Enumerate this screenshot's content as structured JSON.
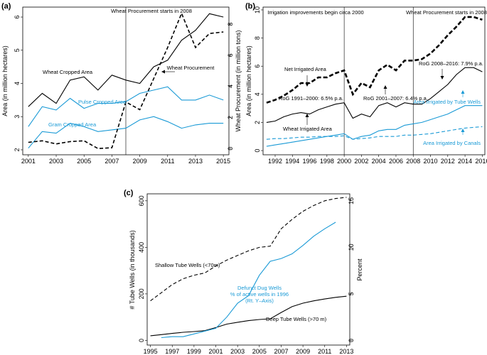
{
  "colors": {
    "black": "#000000",
    "blue": "#1a9ad6"
  },
  "chart_data": [
    {
      "panel": "(a)",
      "type": "line",
      "xlabel": "",
      "ylabel": "Area (in million hectares)",
      "ylabel_right": "Wheat Procurement (in million tons)",
      "xlim": [
        2001,
        2015
      ],
      "ylim": [
        2,
        6
      ],
      "ylim_right": [
        0,
        8.5
      ],
      "xticks": [
        "2001",
        "2003",
        "2005",
        "2007",
        "2009",
        "2011",
        "2013",
        "2015"
      ],
      "yticks": [
        "2",
        "3",
        "4",
        "5",
        "6"
      ],
      "yticks_right": [
        "0",
        "2",
        "4",
        "6",
        "8"
      ],
      "vline": {
        "x": 2008,
        "label": "Wheat Procurement starts in 2008"
      },
      "x": [
        2001,
        2002,
        2003,
        2004,
        2005,
        2006,
        2007,
        2008,
        2009,
        2010,
        2011,
        2012,
        2013,
        2014,
        2015
      ],
      "series": [
        {
          "name": "Wheat Cropped Area",
          "axis": "left",
          "color": "black",
          "dash": "solid",
          "values": [
            3.3,
            3.7,
            3.4,
            4.1,
            4.2,
            3.8,
            4.25,
            4.1,
            4.0,
            4.5,
            4.7,
            5.3,
            5.6,
            6.1,
            6.0
          ]
        },
        {
          "name": "Pulse Cropped Area",
          "axis": "left",
          "color": "blue",
          "dash": "solid",
          "values": [
            2.7,
            3.3,
            3.2,
            3.55,
            3.25,
            3.4,
            3.4,
            3.45,
            3.7,
            3.8,
            3.9,
            3.5,
            3.5,
            3.65,
            3.5
          ]
        },
        {
          "name": "Gram Cropped Area",
          "axis": "left",
          "color": "blue",
          "dash": "solid",
          "values": [
            2.05,
            2.55,
            2.5,
            2.8,
            2.7,
            2.55,
            2.6,
            2.65,
            2.9,
            3.0,
            2.85,
            2.65,
            2.75,
            2.8,
            2.8
          ]
        },
        {
          "name": "Wheat Procurement",
          "axis": "right",
          "color": "black",
          "dash": "dashed",
          "values": [
            0.4,
            0.5,
            0.3,
            0.45,
            0.5,
            0.0,
            0.05,
            3.0,
            2.5,
            4.5,
            6.5,
            8.7,
            6.5,
            7.4,
            7.5
          ]
        }
      ],
      "labels": {
        "wheat_area": "Wheat Cropped Area",
        "pulse_area": "Pulse Cropped Area",
        "gram_area": "Gram Cropped Area",
        "procurement": "Wheat Procurement"
      }
    },
    {
      "panel": "(b)",
      "type": "line",
      "xlabel": "",
      "ylabel": "Area (in million hectares)",
      "xlim": [
        1991,
        2016
      ],
      "ylim": [
        0,
        10
      ],
      "xticks": [
        "1992",
        "1994",
        "1996",
        "1998",
        "2000",
        "2002",
        "2004",
        "2006",
        "2008",
        "2010",
        "2012",
        "2014",
        "2016"
      ],
      "yticks": [
        "0",
        "2",
        "4",
        "6",
        "8",
        "10"
      ],
      "vlines": [
        {
          "x": 2000,
          "label": "Irrigation improvements begin circa 2000"
        },
        {
          "x": 2008,
          "label": "Wheat Procurement starts in 2008"
        }
      ],
      "x": [
        1991,
        1992,
        1993,
        1994,
        1995,
        1996,
        1997,
        1998,
        1999,
        2000,
        2001,
        2002,
        2003,
        2004,
        2005,
        2006,
        2007,
        2008,
        2009,
        2010,
        2011,
        2012,
        2013,
        2014,
        2015,
        2016
      ],
      "series": [
        {
          "name": "Net Irrigated Area",
          "color": "black",
          "dash": "dashed-thick",
          "values": [
            3.4,
            3.6,
            3.9,
            4.3,
            4.8,
            4.8,
            5.2,
            5.2,
            5.5,
            5.7,
            4.0,
            4.8,
            4.5,
            5.7,
            6.1,
            5.7,
            6.4,
            6.4,
            6.5,
            6.9,
            7.5,
            8.2,
            8.8,
            9.5,
            9.5,
            9.3
          ]
        },
        {
          "name": "Wheat Irrigated Area",
          "color": "black",
          "dash": "solid",
          "values": [
            2.0,
            2.1,
            2.4,
            2.6,
            2.7,
            2.6,
            2.9,
            3.1,
            3.3,
            3.4,
            2.3,
            2.6,
            2.4,
            3.2,
            3.4,
            3.1,
            3.4,
            3.3,
            3.3,
            3.7,
            4.2,
            4.7,
            5.4,
            5.9,
            5.9,
            5.6
          ]
        },
        {
          "name": "Area Irrigated by Tube Wells",
          "color": "blue",
          "dash": "solid",
          "values": [
            0.3,
            0.4,
            0.5,
            0.6,
            0.7,
            0.8,
            0.9,
            1.0,
            1.1,
            1.2,
            0.8,
            1.0,
            1.1,
            1.4,
            1.5,
            1.5,
            1.8,
            1.9,
            2.0,
            2.2,
            2.4,
            2.6,
            2.9,
            3.2,
            3.2,
            3.2
          ]
        },
        {
          "name": "Area Irrigated by Canals",
          "color": "blue",
          "dash": "dashed",
          "values": [
            0.8,
            0.85,
            0.85,
            0.9,
            0.95,
            0.95,
            1.0,
            1.0,
            1.0,
            1.05,
            0.8,
            0.85,
            0.9,
            1.0,
            1.0,
            1.0,
            1.1,
            1.1,
            1.15,
            1.2,
            1.3,
            1.4,
            1.5,
            1.6,
            1.65,
            1.7
          ]
        }
      ],
      "annotations": {
        "net_irrigated": "Net Irrigated Area",
        "wheat_irrigated": "Wheat Irrigated Area",
        "tube_wells": "Area Irrigated by Tube Wells",
        "canals": "Area Irrigated by Canals",
        "rog1": "RoG 1991–2000: 6.5% p.a.",
        "rog2": "RoG 2001–2007: 6.4% p.a.",
        "rog3": "RoG 2008–2016: 7.9% p.a."
      }
    },
    {
      "panel": "(c)",
      "type": "line",
      "xlabel": "",
      "ylabel": "# Tube Wells (in thousands)",
      "ylabel_right": "Percent",
      "xlim": [
        1995,
        2013
      ],
      "ylim": [
        -20,
        630
      ],
      "ylim_right": [
        -0.5,
        15.75
      ],
      "xticks": [
        "1995",
        "1997",
        "1999",
        "2001",
        "2003",
        "2005",
        "2007",
        "2009",
        "2011",
        "2013"
      ],
      "yticks": [
        "0",
        "200",
        "400",
        "600"
      ],
      "yticks_right": [
        "0",
        "5",
        "10",
        "15"
      ],
      "series": [
        {
          "name": "Shallow Tube Wells (<70m)",
          "axis": "left",
          "color": "black",
          "dash": "dashed",
          "x": [
            1995,
            1996,
            1997,
            1998,
            1999,
            2000,
            2001,
            2002,
            2003,
            2004,
            2005,
            2006,
            2007,
            2008,
            2009,
            2010,
            2011,
            2012,
            2013
          ],
          "values": [
            170,
            205,
            240,
            265,
            280,
            290,
            320,
            345,
            365,
            385,
            400,
            405,
            480,
            520,
            555,
            580,
            600,
            610,
            615
          ]
        },
        {
          "name": "Deep Tube Wells (>70 m)",
          "axis": "left",
          "color": "black",
          "dash": "solid",
          "x": [
            1995,
            1996,
            1997,
            1998,
            1999,
            2000,
            2001,
            2002,
            2003,
            2004,
            2005,
            2006,
            2007,
            2008,
            2009,
            2010,
            2011,
            2012,
            2013
          ],
          "values": [
            20,
            25,
            30,
            35,
            38,
            42,
            55,
            70,
            78,
            85,
            90,
            93,
            120,
            145,
            160,
            170,
            178,
            185,
            190
          ]
        },
        {
          "name": "Defunct Dug Wells % of active wells in 1996 (Rt. Y-Axis)",
          "axis": "right",
          "color": "blue",
          "dash": "solid",
          "x": [
            1996,
            1997,
            1998,
            1999,
            2000,
            2001,
            2002,
            2003,
            2004,
            2005,
            2006,
            2007,
            2008,
            2009,
            2010,
            2011,
            2012
          ],
          "values": [
            0.3,
            0.4,
            0.4,
            0.7,
            1.0,
            1.3,
            2.5,
            4.0,
            4.8,
            7.0,
            8.5,
            8.8,
            9.3,
            10.2,
            11.2,
            12.0,
            12.7
          ]
        }
      ],
      "annotations": {
        "shallow": "Shallow Tube Wells (<70m)",
        "deep": "Deep Tube Wells (>70 m)",
        "defunct1": "Defunct Dug Wells",
        "defunct2": "% of active wells in 1996",
        "defunct3": "(Rt. Y–Axis)"
      }
    }
  ],
  "panel_labels": {
    "a": "(a)",
    "b": "(b)",
    "c": "(c)"
  }
}
